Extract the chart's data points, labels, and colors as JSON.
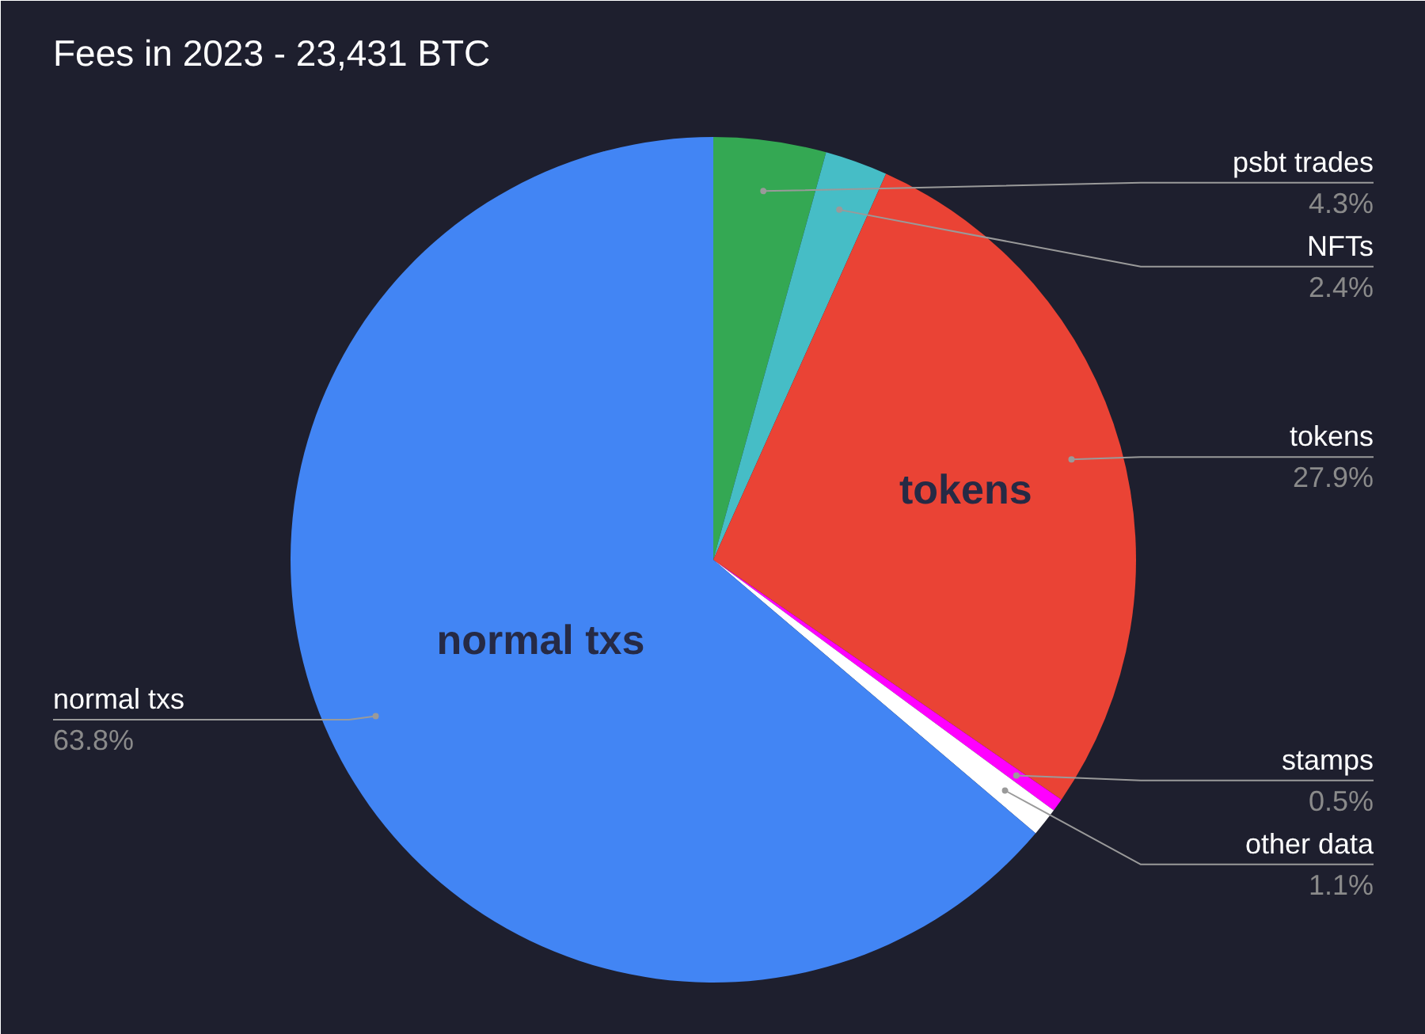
{
  "chart_data": {
    "type": "pie",
    "title": "Fees in 2023 - 23,431 BTC",
    "categories": [
      "psbt trades",
      "NFTs",
      "tokens",
      "stamps",
      "other data",
      "normal txs"
    ],
    "values": [
      4.3,
      2.4,
      27.9,
      0.5,
      1.1,
      63.8
    ],
    "colors": [
      "#34a853",
      "#46bdc6",
      "#ea4335",
      "#ff00ff",
      "#ffffff",
      "#4285f4"
    ],
    "value_labels": [
      "4.3%",
      "2.4%",
      "27.9%",
      "0.5%",
      "1.1%",
      "63.8%"
    ]
  }
}
